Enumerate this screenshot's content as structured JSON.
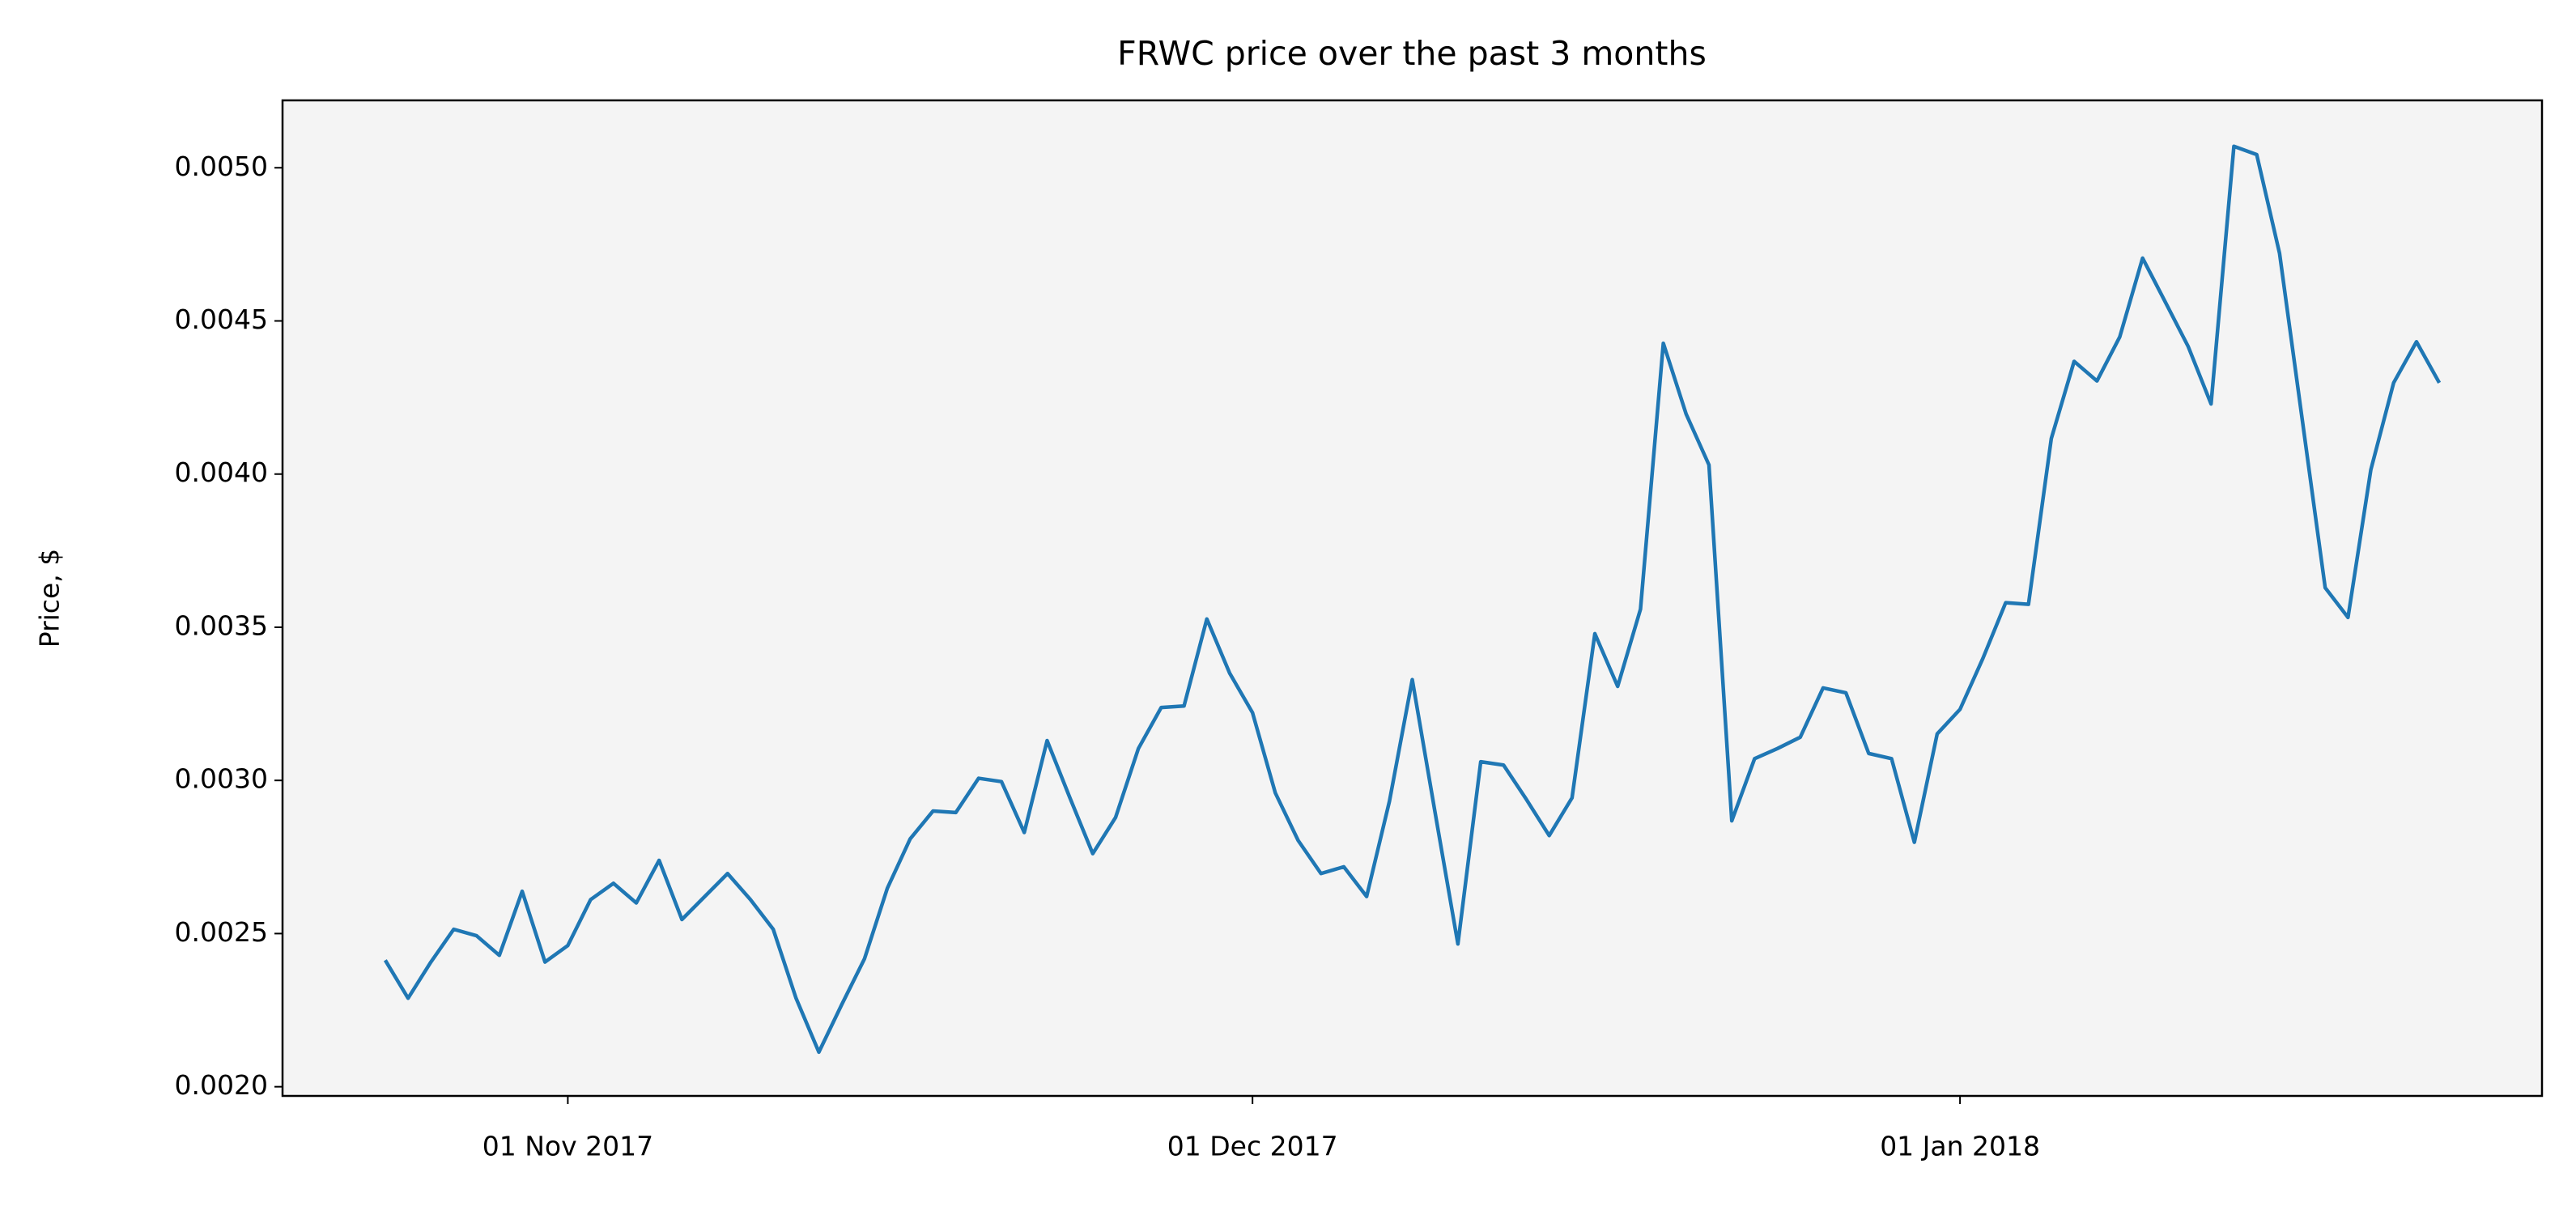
{
  "chart_data": {
    "type": "line",
    "title": "FRWC price over the past 3 months",
    "y_label": "Price, $",
    "x": [
      "2017-10-24",
      "2017-10-25",
      "2017-10-26",
      "2017-10-27",
      "2017-10-28",
      "2017-10-29",
      "2017-10-30",
      "2017-10-31",
      "2017-11-01",
      "2017-11-02",
      "2017-11-03",
      "2017-11-04",
      "2017-11-05",
      "2017-11-06",
      "2017-11-07",
      "2017-11-08",
      "2017-11-09",
      "2017-11-10",
      "2017-11-11",
      "2017-11-12",
      "2017-11-13",
      "2017-11-14",
      "2017-11-15",
      "2017-11-16",
      "2017-11-17",
      "2017-11-18",
      "2017-11-19",
      "2017-11-20",
      "2017-11-21",
      "2017-11-22",
      "2017-11-23",
      "2017-11-24",
      "2017-11-25",
      "2017-11-26",
      "2017-11-27",
      "2017-11-28",
      "2017-11-29",
      "2017-11-30",
      "2017-12-01",
      "2017-12-02",
      "2017-12-03",
      "2017-12-04",
      "2017-12-05",
      "2017-12-06",
      "2017-12-07",
      "2017-12-08",
      "2017-12-09",
      "2017-12-10",
      "2017-12-11",
      "2017-12-12",
      "2017-12-13",
      "2017-12-14",
      "2017-12-15",
      "2017-12-16",
      "2017-12-17",
      "2017-12-18",
      "2017-12-19",
      "2017-12-20",
      "2017-12-21",
      "2017-12-22",
      "2017-12-23",
      "2017-12-24",
      "2017-12-25",
      "2017-12-26",
      "2017-12-27",
      "2017-12-28",
      "2017-12-29",
      "2017-12-30",
      "2017-12-31",
      "2018-01-01",
      "2018-01-02",
      "2018-01-03",
      "2018-01-04",
      "2018-01-05",
      "2018-01-06",
      "2018-01-07",
      "2018-01-08",
      "2018-01-09",
      "2018-01-10",
      "2018-01-11",
      "2018-01-12",
      "2018-01-13",
      "2018-01-14",
      "2018-01-15",
      "2018-01-16",
      "2018-01-17",
      "2018-01-18",
      "2018-01-19",
      "2018-01-20",
      "2018-01-21",
      "2018-01-22"
    ],
    "values": [
      0.002413,
      0.002289,
      0.002407,
      0.002514,
      0.002493,
      0.002429,
      0.002638,
      0.002407,
      0.002461,
      0.002611,
      0.002664,
      0.0026,
      0.002739,
      0.002546,
      0.002621,
      0.002696,
      0.002611,
      0.002514,
      0.002289,
      0.002113,
      0.002268,
      0.002418,
      0.002648,
      0.002809,
      0.0029,
      0.002895,
      0.003007,
      0.002996,
      0.00283,
      0.00313,
      0.002943,
      0.002761,
      0.002879,
      0.003104,
      0.003238,
      0.003243,
      0.003527,
      0.00335,
      0.003221,
      0.002959,
      0.002804,
      0.002696,
      0.002718,
      0.002621,
      0.002932,
      0.003329,
      0.002895,
      0.002466,
      0.003061,
      0.00305,
      0.002938,
      0.00282,
      0.002943,
      0.003479,
      0.003307,
      0.003559,
      0.004427,
      0.004196,
      0.00403,
      0.002868,
      0.003071,
      0.003104,
      0.003141,
      0.003302,
      0.003286,
      0.003088,
      0.003071,
      0.002798,
      0.003152,
      0.003232,
      0.003398,
      0.00358,
      0.003575,
      0.004116,
      0.004368,
      0.004304,
      0.004448,
      0.004705,
      0.004561,
      0.004416,
      0.004229,
      0.00507,
      0.005043,
      0.004721,
      0.004175,
      0.003629,
      0.003532,
      0.004014,
      0.004298,
      0.004432,
      0.004298
    ],
    "color": "#1f77b4",
    "plot_background": "#f4f4f4",
    "xlim": [
      "2017-10-19T12:00:00Z",
      "2018-01-26T12:00:00Z"
    ],
    "xticks": [
      {
        "value": "2017-11-01",
        "label": "01 Nov 2017"
      },
      {
        "value": "2017-12-01",
        "label": "01 Dec 2017"
      },
      {
        "value": "2018-01-01",
        "label": "01 Jan 2018"
      }
    ],
    "ylim": [
      0.00197,
      0.00522
    ],
    "yticks": [
      {
        "value": 0.002,
        "label": "0.0020"
      },
      {
        "value": 0.0025,
        "label": "0.0025"
      },
      {
        "value": 0.003,
        "label": "0.0030"
      },
      {
        "value": 0.0035,
        "label": "0.0035"
      },
      {
        "value": 0.004,
        "label": "0.0040"
      },
      {
        "value": 0.0045,
        "label": "0.0045"
      },
      {
        "value": 0.005,
        "label": "0.0050"
      }
    ],
    "grid": false
  }
}
